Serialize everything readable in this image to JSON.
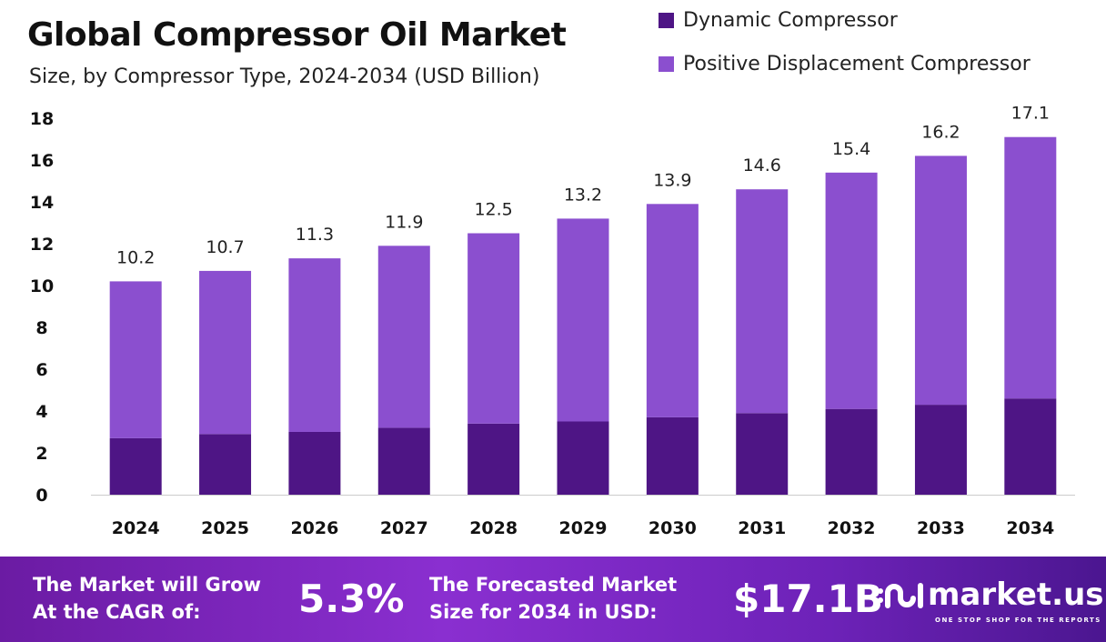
{
  "chart_data": {
    "type": "bar",
    "stacked": true,
    "title": "Global Compressor Oil Market",
    "subtitle": "Size, by Compressor Type, 2024-2034 (USD Billion)",
    "categories": [
      "2024",
      "2025",
      "2026",
      "2027",
      "2028",
      "2029",
      "2030",
      "2031",
      "2032",
      "2033",
      "2034"
    ],
    "series": [
      {
        "name": "Dynamic Compressor",
        "color": "#4e1585",
        "values": [
          2.7,
          2.9,
          3.0,
          3.2,
          3.4,
          3.5,
          3.7,
          3.9,
          4.1,
          4.3,
          4.6
        ]
      },
      {
        "name": "Positive Displacement Compressor",
        "color": "#8b4fcf",
        "values": [
          7.5,
          7.8,
          8.3,
          8.7,
          9.1,
          9.7,
          10.2,
          10.7,
          11.3,
          11.9,
          12.5
        ]
      }
    ],
    "totals": [
      "10.2",
      "10.7",
      "11.3",
      "11.9",
      "12.5",
      "13.2",
      "13.9",
      "14.6",
      "15.4",
      "16.2",
      "17.1"
    ],
    "ylim": [
      0,
      18
    ],
    "yticks": [
      "0",
      "2",
      "4",
      "6",
      "8",
      "10",
      "12",
      "14",
      "16",
      "18"
    ],
    "grid": false,
    "legend": "top-right"
  },
  "banner": {
    "cagr_label": "The Market will Grow At the CAGR of:",
    "cagr_value": "5.3%",
    "forecast_label": "The Forecasted Market Size for 2034 in USD:",
    "forecast_value": "$17.1B",
    "logo_text": "market.us",
    "logo_tagline": "ONE STOP SHOP FOR THE REPORTS"
  }
}
